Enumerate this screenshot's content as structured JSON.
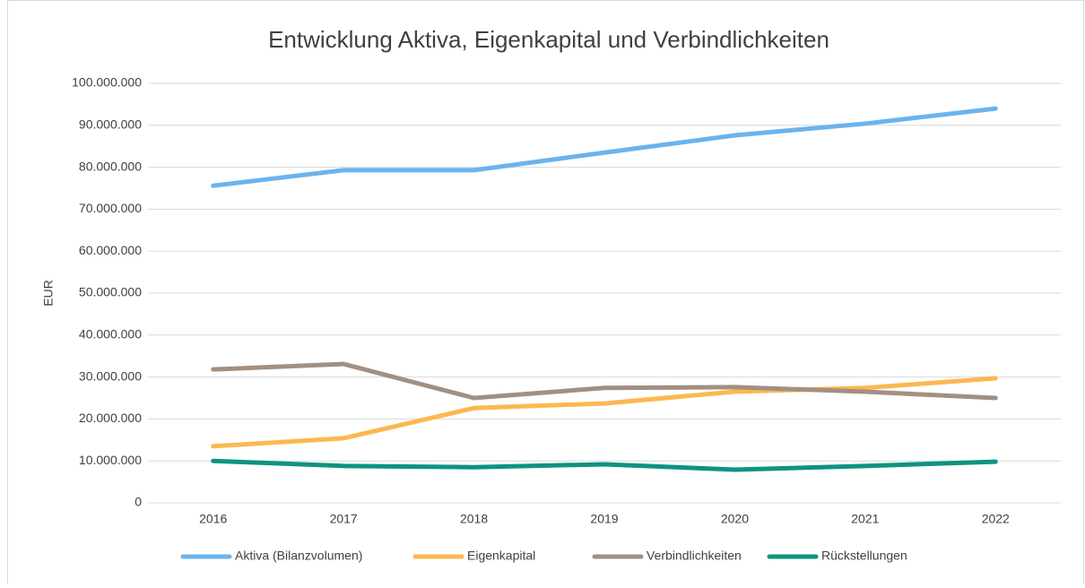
{
  "chart_data": {
    "type": "line",
    "title": "Entwicklung Aktiva, Eigenkapital und Verbindlichkeiten",
    "y_label": "EUR",
    "categories": [
      "2016",
      "2017",
      "2018",
      "2019",
      "2020",
      "2021",
      "2022"
    ],
    "series": [
      {
        "name": "Aktiva (Bilanzvolumen)",
        "color": "#6cb3ec",
        "values": [
          75600000,
          79300000,
          79300000,
          83500000,
          87600000,
          90400000,
          94000000
        ]
      },
      {
        "name": "Eigenkapital",
        "color": "#fbb851",
        "values": [
          13500000,
          15400000,
          22600000,
          23700000,
          26500000,
          27400000,
          29700000
        ]
      },
      {
        "name": "Verbindlichkeiten",
        "color": "#a38f82",
        "values": [
          31800000,
          33100000,
          25000000,
          27400000,
          27600000,
          26500000,
          25000000
        ]
      },
      {
        "name": "Rückstellungen",
        "color": "#0d9480",
        "values": [
          10000000,
          8800000,
          8500000,
          9200000,
          7900000,
          8800000,
          9800000
        ]
      }
    ],
    "ylim": [
      0,
      100000000
    ],
    "yticks": [
      0,
      {
        "value": 10000000,
        "label": "10.000.000"
      },
      {
        "value": 20000000,
        "label": "20.000.000"
      },
      {
        "value": 30000000,
        "label": "30.000.000"
      },
      {
        "value": 40000000,
        "label": "40.000.000"
      },
      {
        "value": 50000000,
        "label": "50.000.000"
      },
      {
        "value": 60000000,
        "label": "60.000.000"
      },
      {
        "value": 70000000,
        "label": "70.000.000"
      },
      {
        "value": 80000000,
        "label": "80.000.000"
      },
      {
        "value": 90000000,
        "label": "90.000.000"
      },
      {
        "value": 100000000,
        "label": "100.000.000"
      }
    ],
    "grid": true,
    "legend": "bottom"
  }
}
